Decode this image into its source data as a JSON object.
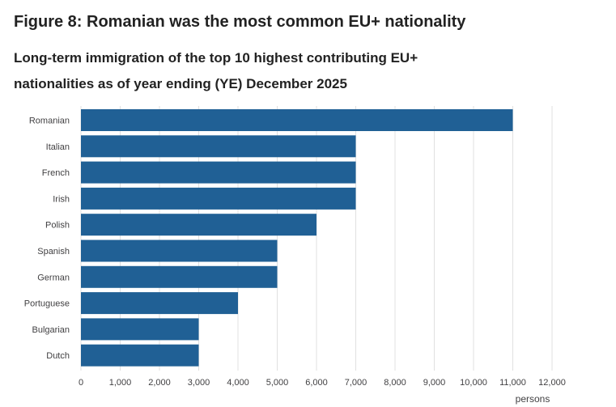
{
  "figure": {
    "title": "Figure 8: Romanian was the most common EU+ nationality",
    "subtitle": "Long-term immigration of the top 10 highest contributing EU+ nationalities as of year ending (YE) December 2025"
  },
  "chart_data": {
    "type": "bar",
    "orientation": "horizontal",
    "categories": [
      "Romanian",
      "Italian",
      "French",
      "Irish",
      "Polish",
      "Spanish",
      "German",
      "Portuguese",
      "Bulgarian",
      "Dutch"
    ],
    "values": [
      11000,
      7000,
      7000,
      7000,
      6000,
      5000,
      5000,
      4000,
      3000,
      3000
    ],
    "xlim": [
      0,
      12000
    ],
    "xticks": [
      0,
      1000,
      2000,
      3000,
      4000,
      5000,
      6000,
      7000,
      8000,
      9000,
      10000,
      11000,
      12000
    ],
    "xtick_labels": [
      "0",
      "1,000",
      "2,000",
      "3,000",
      "4,000",
      "5,000",
      "6,000",
      "7,000",
      "8,000",
      "9,000",
      "10,000",
      "11,000",
      "12,000"
    ],
    "xlabel": "persons",
    "ylabel": "",
    "grid": true,
    "bar_color": "#206095",
    "grid_color": "#e0e0e0"
  }
}
